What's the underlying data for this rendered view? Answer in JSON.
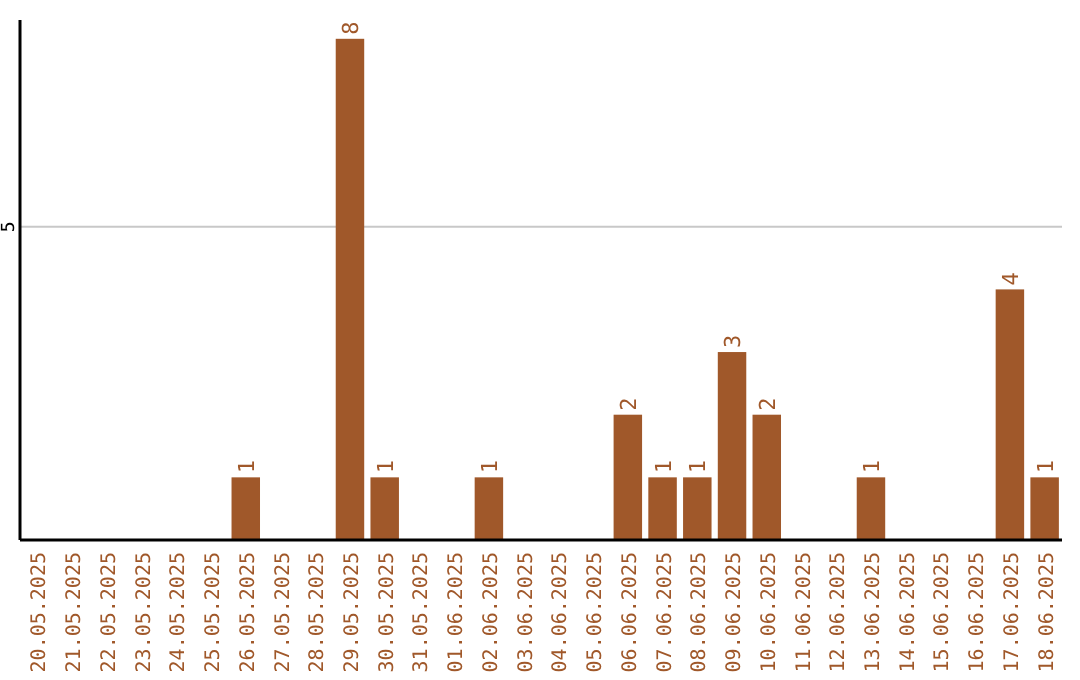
{
  "chart_data": {
    "type": "bar",
    "categories": [
      "20.05.2025",
      "21.05.2025",
      "22.05.2025",
      "23.05.2025",
      "24.05.2025",
      "25.05.2025",
      "26.05.2025",
      "27.05.2025",
      "28.05.2025",
      "29.05.2025",
      "30.05.2025",
      "31.05.2025",
      "01.06.2025",
      "02.06.2025",
      "03.06.2025",
      "04.06.2025",
      "05.06.2025",
      "06.06.2025",
      "07.06.2025",
      "08.06.2025",
      "09.06.2025",
      "10.06.2025",
      "11.06.2025",
      "12.06.2025",
      "13.06.2025",
      "14.06.2025",
      "15.06.2025",
      "16.06.2025",
      "17.06.2025",
      "18.06.2025"
    ],
    "values": [
      0,
      0,
      0,
      0,
      0,
      0,
      1,
      0,
      0,
      8,
      1,
      0,
      0,
      1,
      0,
      0,
      0,
      2,
      1,
      1,
      3,
      2,
      0,
      0,
      1,
      0,
      0,
      0,
      4,
      1
    ],
    "value_labels": [
      null,
      null,
      null,
      null,
      null,
      null,
      "1",
      null,
      null,
      "8",
      "1",
      null,
      null,
      "1",
      null,
      null,
      null,
      "2",
      "1",
      "1",
      "3",
      "2",
      null,
      null,
      "1",
      null,
      null,
      null,
      "4",
      "1"
    ],
    "color": "#a0582a",
    "ylim": [
      0,
      8.3
    ],
    "yticks": [
      5
    ],
    "grid": "y"
  }
}
